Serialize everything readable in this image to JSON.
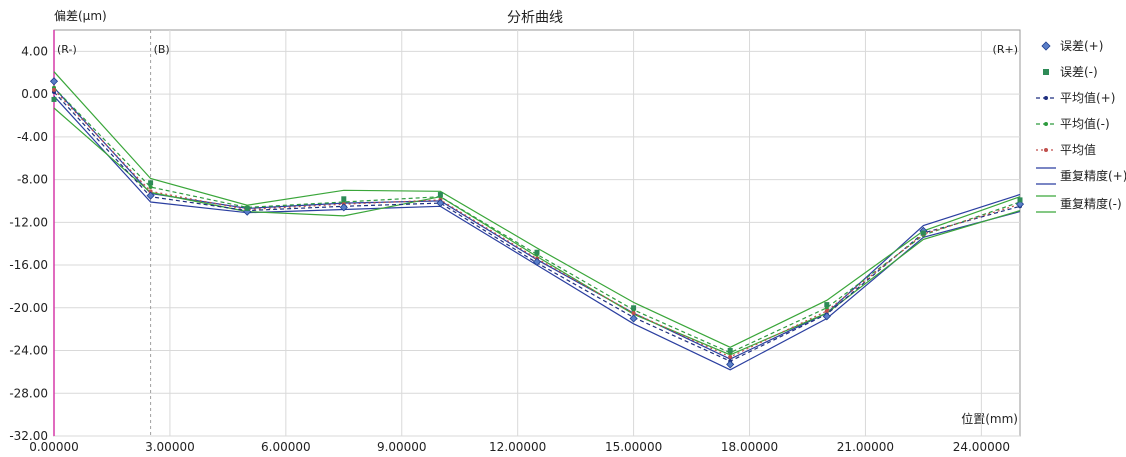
{
  "chart_data": {
    "type": "line",
    "title": "分析曲线",
    "ylabel": "偏差(μm)",
    "xlabel": "位置(mm)",
    "xlim": [
      0,
      25
    ],
    "ylim": [
      -32,
      6
    ],
    "xticks": [
      0,
      3,
      6,
      9,
      12,
      15,
      18,
      21,
      24
    ],
    "xtick_labels": [
      "0.00000",
      "3.00000",
      "6.00000",
      "9.00000",
      "12.00000",
      "15.00000",
      "18.00000",
      "21.00000",
      "24.00000"
    ],
    "yticks": [
      4,
      0,
      -4,
      -8,
      -12,
      -16,
      -20,
      -24,
      -28,
      -32
    ],
    "ytick_labels": [
      "4.00",
      "0.00",
      "-4.00",
      "-8.00",
      "-12.00",
      "-16.00",
      "-20.00",
      "-24.00",
      "-28.00",
      "-32.00"
    ],
    "grid": true,
    "legend_position": "right",
    "x": [
      0,
      2.5,
      5,
      7.5,
      10,
      12.5,
      15,
      17.5,
      20,
      22.5,
      25
    ],
    "series": [
      {
        "name": "误差(+)",
        "kind": "points",
        "marker": "diamond",
        "color": "#1f3f8f",
        "values": [
          1.2,
          -9.5,
          -11.0,
          -10.6,
          -10.2,
          -15.7,
          -21.0,
          -25.3,
          -20.8,
          -12.8,
          -10.3
        ]
      },
      {
        "name": "误差(-)",
        "kind": "points",
        "marker": "square",
        "color": "#2e8b57",
        "values": [
          -0.5,
          -8.3,
          -10.7,
          -9.8,
          -9.4,
          -14.8,
          -20.0,
          -24.0,
          -19.7,
          -13.0,
          -9.9
        ]
      },
      {
        "name": "平均值(+)",
        "kind": "line",
        "dash": "4,3",
        "marker": "dot",
        "color": "#1f2f7f",
        "values": [
          0.2,
          -9.6,
          -10.9,
          -10.5,
          -10.2,
          -15.8,
          -20.9,
          -25.0,
          -20.6,
          -13.0,
          -10.5
        ]
      },
      {
        "name": "平均值(-)",
        "kind": "line",
        "dash": "4,3",
        "marker": "dot",
        "color": "#2e9b3e",
        "values": [
          0.6,
          -8.7,
          -10.6,
          -10.1,
          -9.6,
          -15.0,
          -20.2,
          -24.2,
          -20.0,
          -13.2,
          -10.1
        ]
      },
      {
        "name": "平均值",
        "kind": "line",
        "dash": "2,3",
        "marker": "dot",
        "color": "#c0504d",
        "values": [
          0.4,
          -9.1,
          -10.8,
          -10.3,
          -9.9,
          -15.4,
          -20.5,
          -24.6,
          -20.3,
          -13.1,
          -10.3
        ]
      },
      {
        "name": "重复精度(+)",
        "kind": "band",
        "color": "#2b3fa0",
        "upper": [
          0.6,
          -9.3,
          -10.7,
          -10.2,
          -10.0,
          -15.5,
          -20.5,
          -24.8,
          -20.5,
          -12.3,
          -9.4
        ],
        "lower": [
          -0.2,
          -10.1,
          -11.1,
          -10.8,
          -10.5,
          -16.0,
          -21.5,
          -25.8,
          -21.0,
          -13.4,
          -11.0
        ]
      },
      {
        "name": "重复精度(-)",
        "kind": "band",
        "color": "#3aa63a",
        "upper": [
          2.1,
          -7.9,
          -10.4,
          -9.0,
          -9.1,
          -14.4,
          -19.5,
          -23.7,
          -19.3,
          -12.8,
          -9.6
        ],
        "lower": [
          -1.3,
          -9.2,
          -11.0,
          -11.4,
          -9.6,
          -15.2,
          -20.6,
          -24.4,
          -20.5,
          -13.6,
          -10.9
        ]
      }
    ],
    "markers": [
      {
        "label": "(R-)",
        "x": 0
      },
      {
        "label": "(B)",
        "x": 2.5
      },
      {
        "label": "(R+)",
        "x": 25
      }
    ]
  }
}
